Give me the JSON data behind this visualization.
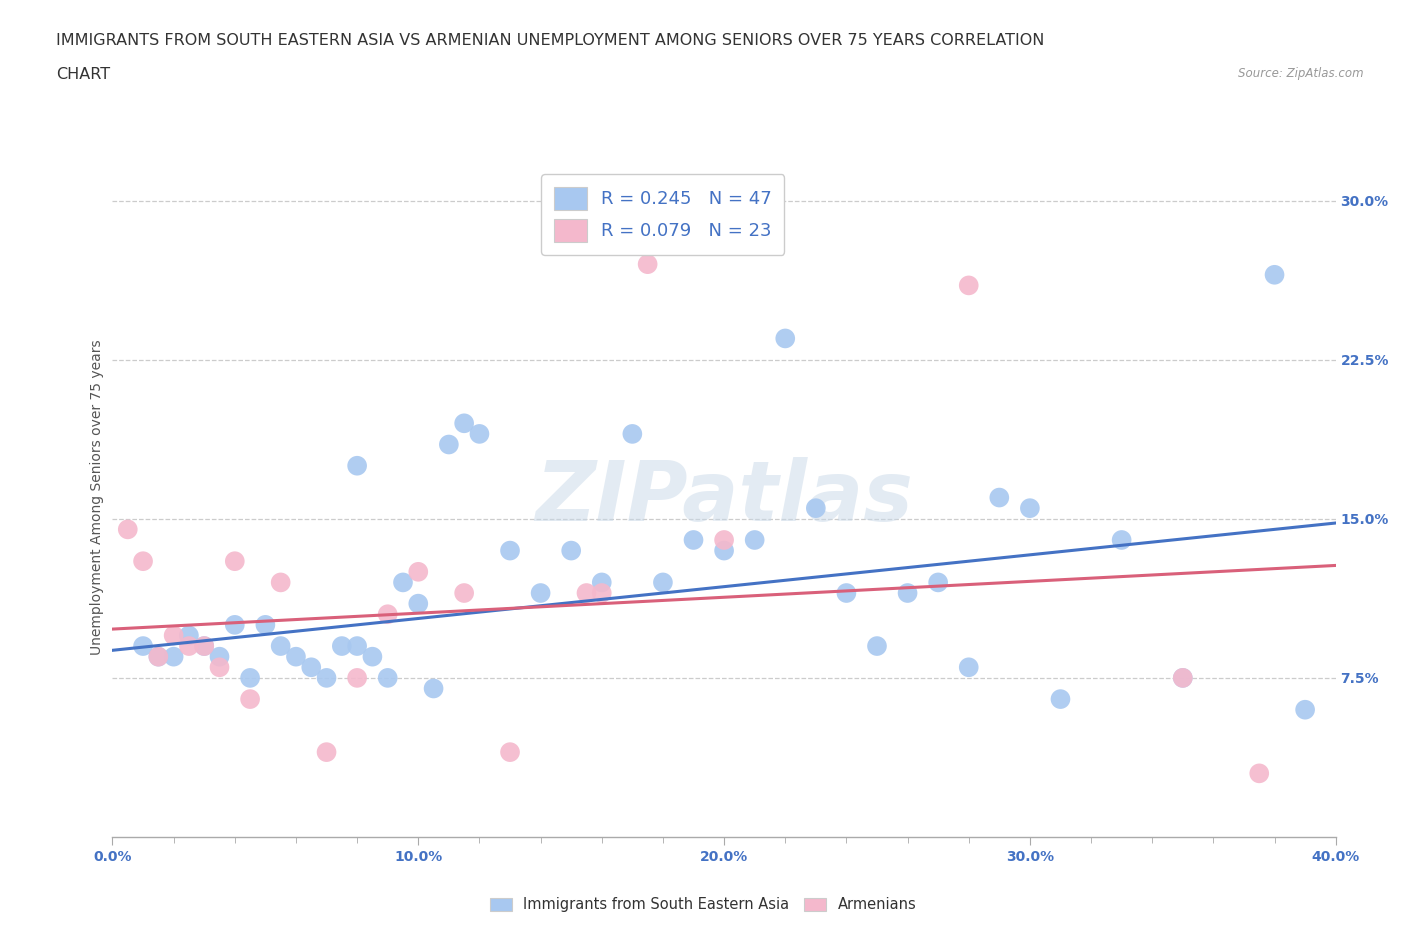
{
  "title_line1": "IMMIGRANTS FROM SOUTH EASTERN ASIA VS ARMENIAN UNEMPLOYMENT AMONG SENIORS OVER 75 YEARS CORRELATION",
  "title_line2": "CHART",
  "source": "Source: ZipAtlas.com",
  "ylabel": "Unemployment Among Seniors over 75 years",
  "xlim": [
    0.0,
    0.4
  ],
  "ylim": [
    0.0,
    0.32
  ],
  "xtick_labels": [
    "0.0%",
    "",
    "",
    "",
    "",
    "10.0%",
    "",
    "",
    "",
    "",
    "20.0%",
    "",
    "",
    "",
    "",
    "30.0%",
    "",
    "",
    "",
    "",
    "40.0%"
  ],
  "xtick_values": [
    0.0,
    0.02,
    0.04,
    0.06,
    0.08,
    0.1,
    0.12,
    0.14,
    0.16,
    0.18,
    0.2,
    0.22,
    0.24,
    0.26,
    0.28,
    0.3,
    0.32,
    0.34,
    0.36,
    0.38,
    0.4
  ],
  "xtick_major_labels": [
    "0.0%",
    "10.0%",
    "20.0%",
    "30.0%",
    "40.0%"
  ],
  "xtick_major_values": [
    0.0,
    0.1,
    0.2,
    0.3,
    0.4
  ],
  "ytick_labels_right": [
    "7.5%",
    "15.0%",
    "22.5%",
    "30.0%"
  ],
  "ytick_values_right": [
    0.075,
    0.15,
    0.225,
    0.3
  ],
  "legend_entries": [
    {
      "label": "R = 0.245   N = 47",
      "color": "#a8c8f0"
    },
    {
      "label": "R = 0.079   N = 23",
      "color": "#f0a8c0"
    }
  ],
  "blue_scatter_x": [
    0.01,
    0.015,
    0.02,
    0.025,
    0.03,
    0.035,
    0.04,
    0.045,
    0.05,
    0.055,
    0.06,
    0.065,
    0.07,
    0.075,
    0.08,
    0.085,
    0.09,
    0.095,
    0.1,
    0.105,
    0.11,
    0.115,
    0.12,
    0.13,
    0.14,
    0.15,
    0.16,
    0.17,
    0.18,
    0.19,
    0.2,
    0.21,
    0.22,
    0.23,
    0.24,
    0.25,
    0.26,
    0.27,
    0.28,
    0.29,
    0.3,
    0.31,
    0.33,
    0.35,
    0.38,
    0.39,
    0.08
  ],
  "blue_scatter_y": [
    0.09,
    0.085,
    0.085,
    0.095,
    0.09,
    0.085,
    0.1,
    0.075,
    0.1,
    0.09,
    0.085,
    0.08,
    0.075,
    0.09,
    0.09,
    0.085,
    0.075,
    0.12,
    0.11,
    0.07,
    0.185,
    0.195,
    0.19,
    0.135,
    0.115,
    0.135,
    0.12,
    0.19,
    0.12,
    0.14,
    0.135,
    0.14,
    0.235,
    0.155,
    0.115,
    0.09,
    0.115,
    0.12,
    0.08,
    0.16,
    0.155,
    0.065,
    0.14,
    0.075,
    0.265,
    0.06,
    0.175
  ],
  "pink_scatter_x": [
    0.005,
    0.01,
    0.015,
    0.02,
    0.025,
    0.03,
    0.035,
    0.04,
    0.045,
    0.055,
    0.07,
    0.08,
    0.09,
    0.1,
    0.115,
    0.13,
    0.155,
    0.16,
    0.175,
    0.2,
    0.28,
    0.35,
    0.375
  ],
  "pink_scatter_y": [
    0.145,
    0.13,
    0.085,
    0.095,
    0.09,
    0.09,
    0.08,
    0.13,
    0.065,
    0.12,
    0.04,
    0.075,
    0.105,
    0.125,
    0.115,
    0.04,
    0.115,
    0.115,
    0.27,
    0.14,
    0.26,
    0.075,
    0.03
  ],
  "blue_line_y_start": 0.088,
  "blue_line_y_end": 0.148,
  "pink_line_y_start": 0.098,
  "pink_line_y_end": 0.128,
  "watermark": "ZIPatlas",
  "scatter_size": 200,
  "blue_color": "#a8c8f0",
  "pink_color": "#f4b8cc",
  "blue_line_color": "#4472c4",
  "pink_line_color": "#d9607a",
  "grid_color": "#cccccc",
  "background_color": "#ffffff",
  "title_fontsize": 11.5,
  "axis_label_fontsize": 10,
  "tick_fontsize": 10
}
